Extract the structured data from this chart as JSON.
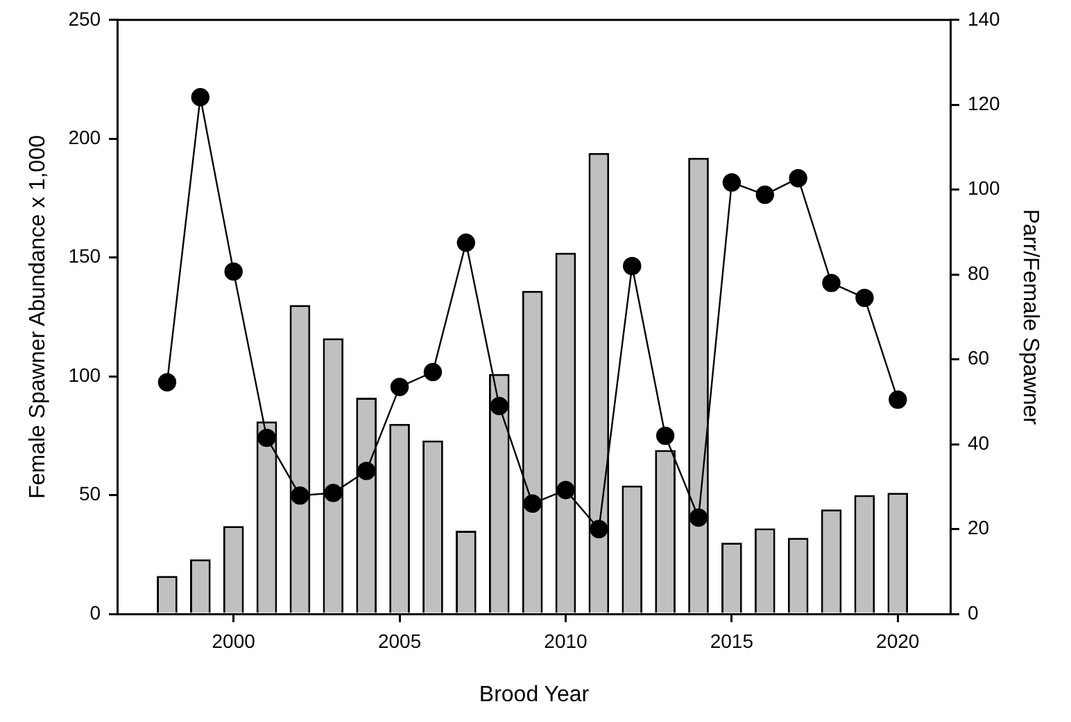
{
  "chart_data": {
    "type": "bar",
    "xlabel": "Brood Year",
    "ylabel": "Female Spawner Abundance x 1,000",
    "y2label": "Parr/Female Spawner",
    "x": [
      1998,
      1999,
      2000,
      2001,
      2002,
      2003,
      2004,
      2005,
      2006,
      2007,
      2008,
      2009,
      2010,
      2011,
      2012,
      2013,
      2014,
      2015,
      2016,
      2017,
      2018,
      2019,
      2020
    ],
    "series": [
      {
        "color": "#c0c0c0",
        "values": [
          16,
          23,
          37,
          81,
          130,
          116,
          91,
          80,
          73,
          35,
          101,
          136,
          152,
          194,
          54,
          69,
          192,
          30,
          36,
          32,
          44,
          50,
          51
        ]
      },
      {
        "type": "line",
        "axis": "y2",
        "color": "#000000",
        "marker": "circle",
        "line_style": "solid",
        "values": [
          54.6,
          121.8,
          80.7,
          41.5,
          27.9,
          28.5,
          33.7,
          53.5,
          57,
          87.5,
          49,
          26,
          29.2,
          20,
          82,
          42,
          22.7,
          101.7,
          98.8,
          102.7,
          78,
          74.5,
          50.5
        ]
      }
    ],
    "xlim": [
      1996.5,
      2021.6
    ],
    "xticks": [
      2000,
      2005,
      2010,
      2015,
      2020
    ],
    "ylim": [
      0,
      250
    ],
    "yticks": [
      0,
      50,
      100,
      150,
      200,
      250
    ],
    "y2lim": [
      0,
      140
    ],
    "y2ticks": [
      0,
      20,
      40,
      60,
      80,
      100,
      120,
      140
    ],
    "grid": false,
    "legend": false
  }
}
